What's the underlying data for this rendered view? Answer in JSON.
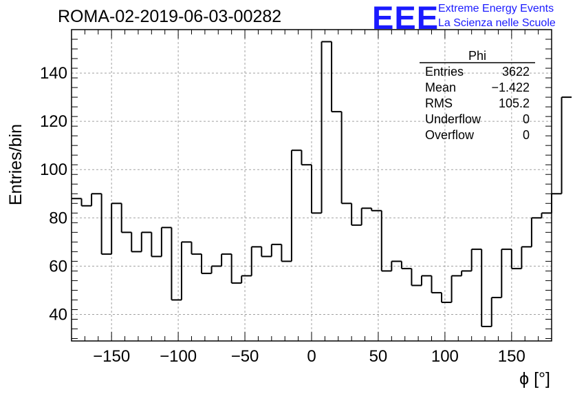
{
  "header": {
    "title": "ROMA-02-2019-06-03-00282",
    "logo_mark": "EEE",
    "logo_line1": "Extreme Energy Events",
    "logo_line2": "La Scienza nelle Scuole",
    "logo_color": "#1a1aff"
  },
  "stats_box": {
    "name": "Phi",
    "rows": [
      {
        "label": "Entries",
        "value": "3622"
      },
      {
        "label": "Mean",
        "value": "−1.422"
      },
      {
        "label": "RMS",
        "value": "105.2"
      },
      {
        "label": "Underflow",
        "value": "0"
      },
      {
        "label": "Overflow",
        "value": "0"
      }
    ]
  },
  "chart_data": {
    "type": "histogram",
    "xlabel": "ϕ [°]",
    "ylabel": "Entries/bin",
    "xlim": [
      -180,
      180
    ],
    "ylim": [
      29,
      158
    ],
    "grid": true,
    "x_ticks": [
      -150,
      -100,
      -50,
      0,
      50,
      100,
      150
    ],
    "x_tick_labels": [
      "−150",
      "−100",
      "−50",
      "0",
      "50",
      "100",
      "150"
    ],
    "y_ticks": [
      40,
      60,
      80,
      100,
      120,
      140
    ],
    "y_tick_labels": [
      "40",
      "60",
      "80",
      "100",
      "120",
      "140"
    ],
    "bin_width": 7.5,
    "bin_edges_start": -180,
    "values": [
      88,
      85,
      90,
      65,
      86,
      74,
      66,
      74,
      64,
      76,
      46,
      70,
      65,
      57,
      60,
      65,
      53,
      56,
      68,
      64,
      69,
      62,
      108,
      102,
      82,
      153,
      124,
      86,
      77,
      84,
      83,
      58,
      62,
      59,
      52,
      56,
      49,
      45,
      56,
      58,
      67,
      35,
      47,
      67,
      59,
      68,
      80,
      82,
      90,
      130
    ],
    "line_color": "#000000"
  }
}
